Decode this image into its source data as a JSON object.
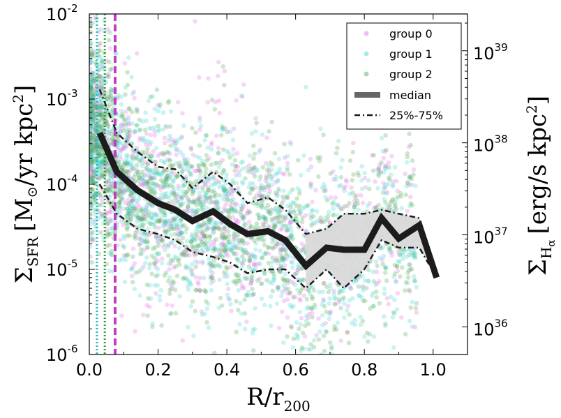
{
  "chart_data": {
    "type": "scatter",
    "xlabel": "R/r",
    "xlabel_sub": "200",
    "ylabel": "Σ",
    "ylabel_sub": "SFR",
    "ylabel_unit": "[M",
    "ylabel_unit_sub": "⊙",
    "ylabel_unit_rest": "/yr kpc",
    "ylabel_unit_sup": "2",
    "ylabel_unit_close": "]",
    "y2label": "Σ",
    "y2label_sub": "H",
    "y2label_subsub": "α",
    "y2label_unit": "[erg/s kpc",
    "y2label_unit_sup": "2",
    "y2label_unit_close": "]",
    "xlim": [
      0.0,
      1.1
    ],
    "ylim_log10": [
      -6,
      -2
    ],
    "y2lim_log10": [
      35.7,
      39.4
    ],
    "xticks": [
      {
        "value": 0.0,
        "label": "0.0"
      },
      {
        "value": 0.2,
        "label": "0.2"
      },
      {
        "value": 0.4,
        "label": "0.4"
      },
      {
        "value": 0.6,
        "label": "0.6"
      },
      {
        "value": 0.8,
        "label": "0.8"
      },
      {
        "value": 1.0,
        "label": "1.0"
      }
    ],
    "yticks": [
      {
        "exp": -6,
        "base": "10",
        "sup": "-6"
      },
      {
        "exp": -5,
        "base": "10",
        "sup": "-5"
      },
      {
        "exp": -4,
        "base": "10",
        "sup": "-4"
      },
      {
        "exp": -3,
        "base": "10",
        "sup": "-3"
      },
      {
        "exp": -2,
        "base": "10",
        "sup": "-2"
      }
    ],
    "y2ticks": [
      {
        "exp": 36,
        "base": "10",
        "sup": "36"
      },
      {
        "exp": 37,
        "base": "10",
        "sup": "37"
      },
      {
        "exp": 38,
        "base": "10",
        "sup": "38"
      },
      {
        "exp": 39,
        "base": "10",
        "sup": "39"
      }
    ],
    "colors": {
      "group0": "#e36be3",
      "group1": "#3fd4d0",
      "group2": "#4ea64e",
      "median": "#1c1c1c",
      "band": "#d9d9d9",
      "vline0": "#c040c0",
      "vline1": "#22bbbb",
      "vline2": "#3a9a3a"
    },
    "vlines": [
      {
        "x": 0.075,
        "group": "group0",
        "style": "dashed"
      },
      {
        "x": 0.022,
        "group": "group1",
        "style": "dotted"
      },
      {
        "x": 0.045,
        "group": "group2",
        "style": "dotted"
      }
    ],
    "median": {
      "x": [
        0.03,
        0.08,
        0.14,
        0.2,
        0.25,
        0.3,
        0.36,
        0.41,
        0.46,
        0.52,
        0.57,
        0.63,
        0.69,
        0.74,
        0.8,
        0.85,
        0.9,
        0.96,
        1.01
      ],
      "y": [
        0.0004,
        0.00014,
        8.5e-05,
        6e-05,
        5e-05,
        3.7e-05,
        4.8e-05,
        3.4e-05,
        2.6e-05,
        2.8e-05,
        2.2e-05,
        1.1e-05,
        1.8e-05,
        1.7e-05,
        1.7e-05,
        4e-05,
        2.3e-05,
        3.3e-05,
        8e-06
      ]
    },
    "p25": {
      "x": [
        0.03,
        0.08,
        0.14,
        0.2,
        0.25,
        0.3,
        0.36,
        0.41,
        0.46,
        0.52,
        0.57,
        0.63,
        0.69,
        0.74,
        0.8,
        0.85,
        0.9,
        0.96,
        1.01
      ],
      "y": [
        0.0001,
        4.5e-05,
        3e-05,
        2.6e-05,
        2.2e-05,
        1.6e-05,
        1.4e-05,
        1.2e-05,
        9e-06,
        1e-05,
        1e-05,
        6e-06,
        1e-05,
        6e-06,
        1e-05,
        2.2e-05,
        1.8e-05,
        1.8e-05,
        8e-06
      ]
    },
    "p75": {
      "x": [
        0.03,
        0.08,
        0.14,
        0.2,
        0.25,
        0.3,
        0.36,
        0.41,
        0.46,
        0.52,
        0.57,
        0.63,
        0.69,
        0.74,
        0.8,
        0.85,
        0.9,
        0.96,
        1.01
      ],
      "y": [
        0.0013,
        0.0004,
        0.00024,
        0.00016,
        0.00015,
        9e-05,
        0.00014,
        0.0001,
        6e-05,
        7e-05,
        5e-05,
        2.6e-05,
        3e-05,
        4.5e-05,
        4.5e-05,
        5e-05,
        4.5e-05,
        4e-05,
        8e-06
      ]
    },
    "legend": {
      "placement": "top-right",
      "entries": [
        {
          "label": "group 0",
          "kind": "point",
          "color_key": "group0"
        },
        {
          "label": "group 1",
          "kind": "point",
          "color_key": "group1"
        },
        {
          "label": "group 2",
          "kind": "point",
          "color_key": "group2"
        },
        {
          "label": "median",
          "kind": "thick-line",
          "color_key": "median"
        },
        {
          "label": "25%-75%",
          "kind": "dashdot",
          "color_key": "median"
        }
      ]
    },
    "scatter_groups": [
      {
        "name": "group 0",
        "color_key": "group0",
        "opacity": 0.28
      },
      {
        "name": "group 1",
        "color_key": "group1",
        "opacity": 0.28
      },
      {
        "name": "group 2",
        "color_key": "group2",
        "opacity": 0.28
      }
    ]
  }
}
